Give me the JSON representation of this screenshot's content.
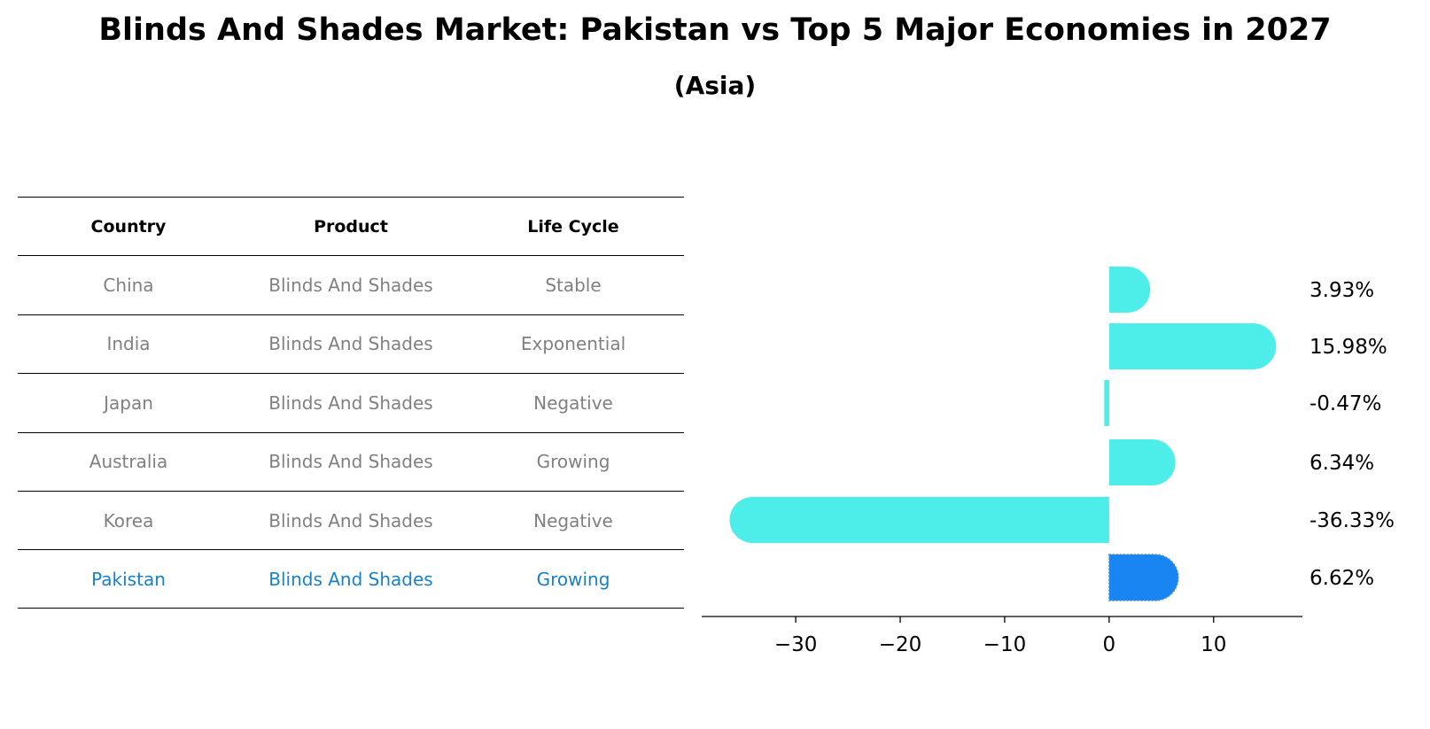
{
  "title": "Blinds And Shades Market: Pakistan vs Top 5 Major Economies in 2027",
  "subtitle": "(Asia)",
  "table": {
    "headers": [
      "Country",
      "Product",
      "Life Cycle"
    ],
    "rows": [
      [
        "China",
        "Blinds And Shades",
        "Stable"
      ],
      [
        "India",
        "Blinds And Shades",
        "Exponential"
      ],
      [
        "Japan",
        "Blinds And Shades",
        "Negative"
      ],
      [
        "Australia",
        "Blinds And Shades",
        "Growing"
      ],
      [
        "Korea",
        "Blinds And Shades",
        "Negative"
      ],
      [
        "Pakistan",
        "Blinds And Shades",
        "Growing"
      ]
    ]
  },
  "colors": {
    "bar": "#4deeea",
    "highlight_bar": "#1885f2",
    "highlight_text": "#1a80c8",
    "muted_text": "#808080"
  },
  "chart_data": {
    "type": "bar",
    "orientation": "horizontal",
    "categories": [
      "China",
      "India",
      "Japan",
      "Australia",
      "Korea",
      "Pakistan"
    ],
    "values": [
      3.93,
      15.98,
      -0.47,
      6.34,
      -36.33,
      6.62
    ],
    "value_labels": [
      "3.93%",
      "15.98%",
      "-0.47%",
      "6.34%",
      "-36.33%",
      "6.62%"
    ],
    "highlight": "Pakistan",
    "xticks": [
      -30,
      -20,
      -10,
      0,
      10
    ],
    "xtick_labels": [
      "−30",
      "−20",
      "−10",
      "0",
      "10"
    ],
    "xlim": [
      -39,
      18.5
    ],
    "grid": false
  }
}
